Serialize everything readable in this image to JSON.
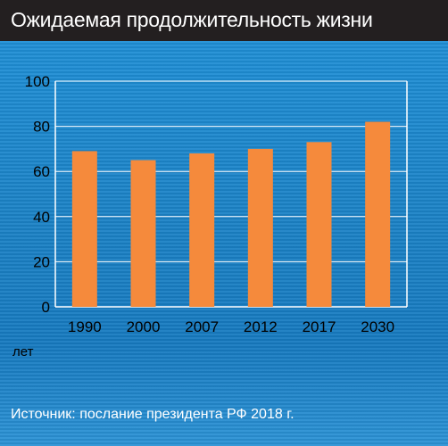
{
  "title": "Ожидаемая продолжительность жизни",
  "source": "Источник: послание президента РФ 2018 г.",
  "colors": {
    "bar": "#f58a3c",
    "header": "#231f20",
    "background": "#1b82c6",
    "gridline": "#ffffff"
  },
  "chart_data": {
    "type": "bar",
    "categories": [
      "1990",
      "2000",
      "2007",
      "2012",
      "2017",
      "2030"
    ],
    "values": [
      69,
      65,
      68,
      70,
      73,
      82
    ],
    "xlabel": "лет",
    "ylabel": "",
    "ylim": [
      0,
      100
    ],
    "yticks": [
      0,
      20,
      40,
      60,
      80,
      100
    ],
    "grid": true
  }
}
